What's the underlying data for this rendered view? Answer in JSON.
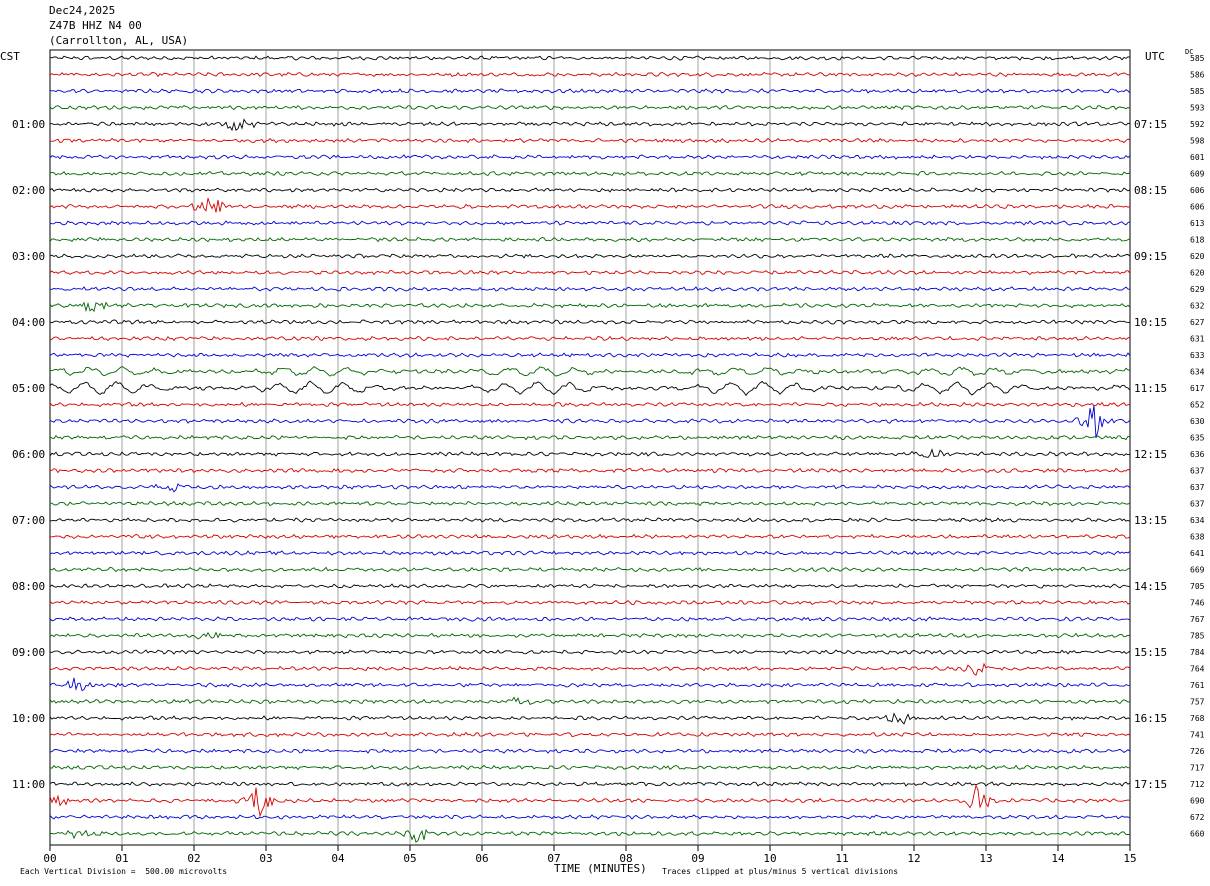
{
  "header": {
    "date": "Dec24,2025",
    "station": "Z47B HHZ N4 00",
    "location": "(Carrollton, AL, USA)"
  },
  "left_tz": "CST",
  "right_tz": "UTC",
  "dc_label": "DC",
  "footer": {
    "left_note": "Each Vertical Division =  500.00 microvolts",
    "right_note": "Traces clipped at plus/minus 5 vertical divisions",
    "x_title": "TIME (MINUTES)"
  },
  "chart_data": {
    "type": "line",
    "title": "Z47B HHZ N4 00",
    "xlabel": "TIME (MINUTES)",
    "x_ticks": [
      "00",
      "01",
      "02",
      "03",
      "04",
      "05",
      "06",
      "07",
      "08",
      "09",
      "10",
      "11",
      "12",
      "13",
      "14",
      "15"
    ],
    "xlim": [
      0,
      15
    ],
    "trace_minutes": 15,
    "trace_colors": [
      "#000000",
      "#d40000",
      "#0000d4",
      "#006400"
    ],
    "left_hour_labels": [
      "01:00",
      "02:00",
      "03:00",
      "04:00",
      "05:00",
      "06:00",
      "07:00",
      "08:00",
      "09:00",
      "10:00",
      "11:00"
    ],
    "right_hour_labels": [
      "07:15",
      "08:15",
      "09:15",
      "10:15",
      "11:15",
      "12:15",
      "13:15",
      "14:15",
      "15:15",
      "16:15",
      "17:15"
    ],
    "dc_offsets": [
      585,
      586,
      585,
      593,
      592,
      598,
      601,
      609,
      606,
      606,
      613,
      618,
      620,
      620,
      629,
      632,
      627,
      631,
      633,
      634,
      617,
      652,
      630,
      635,
      636,
      637,
      637,
      637,
      634,
      638,
      641,
      669,
      705,
      746,
      767,
      785,
      784,
      764,
      761,
      757,
      768,
      741,
      726,
      717,
      712,
      690,
      672,
      660
    ],
    "events": [
      {
        "trace": 4,
        "minute": 2.6,
        "amp": 1.0,
        "kind": "burst"
      },
      {
        "trace": 9,
        "minute": 2.2,
        "amp": 3.2,
        "kind": "spike"
      },
      {
        "trace": 15,
        "minute": 0.6,
        "amp": 0.9,
        "kind": "burst"
      },
      {
        "trace": 19,
        "minute": 6.0,
        "amp": 0.6,
        "kind": "swell"
      },
      {
        "trace": 20,
        "minute": 6.0,
        "amp": 0.9,
        "kind": "swell"
      },
      {
        "trace": 22,
        "minute": 14.5,
        "amp": 2.6,
        "kind": "spike"
      },
      {
        "trace": 24,
        "minute": 12.2,
        "amp": 1.0,
        "kind": "burst"
      },
      {
        "trace": 26,
        "minute": 1.7,
        "amp": 0.8,
        "kind": "burst"
      },
      {
        "trace": 35,
        "minute": 2.2,
        "amp": 0.8,
        "kind": "burst"
      },
      {
        "trace": 37,
        "minute": 12.9,
        "amp": 0.8,
        "kind": "burst"
      },
      {
        "trace": 38,
        "minute": 0.4,
        "amp": 1.1,
        "kind": "burst"
      },
      {
        "trace": 39,
        "minute": 6.5,
        "amp": 0.7,
        "kind": "burst"
      },
      {
        "trace": 40,
        "minute": 11.8,
        "amp": 1.0,
        "kind": "burst"
      },
      {
        "trace": 45,
        "minute": 2.9,
        "amp": 2.4,
        "kind": "spike"
      },
      {
        "trace": 45,
        "minute": 12.9,
        "amp": 2.6,
        "kind": "spike"
      },
      {
        "trace": 45,
        "minute": 0.1,
        "amp": 0.8,
        "kind": "burst"
      },
      {
        "trace": 47,
        "minute": 5.1,
        "amp": 1.1,
        "kind": "burst"
      },
      {
        "trace": 47,
        "minute": 0.4,
        "amp": 0.8,
        "kind": "burst"
      }
    ]
  }
}
